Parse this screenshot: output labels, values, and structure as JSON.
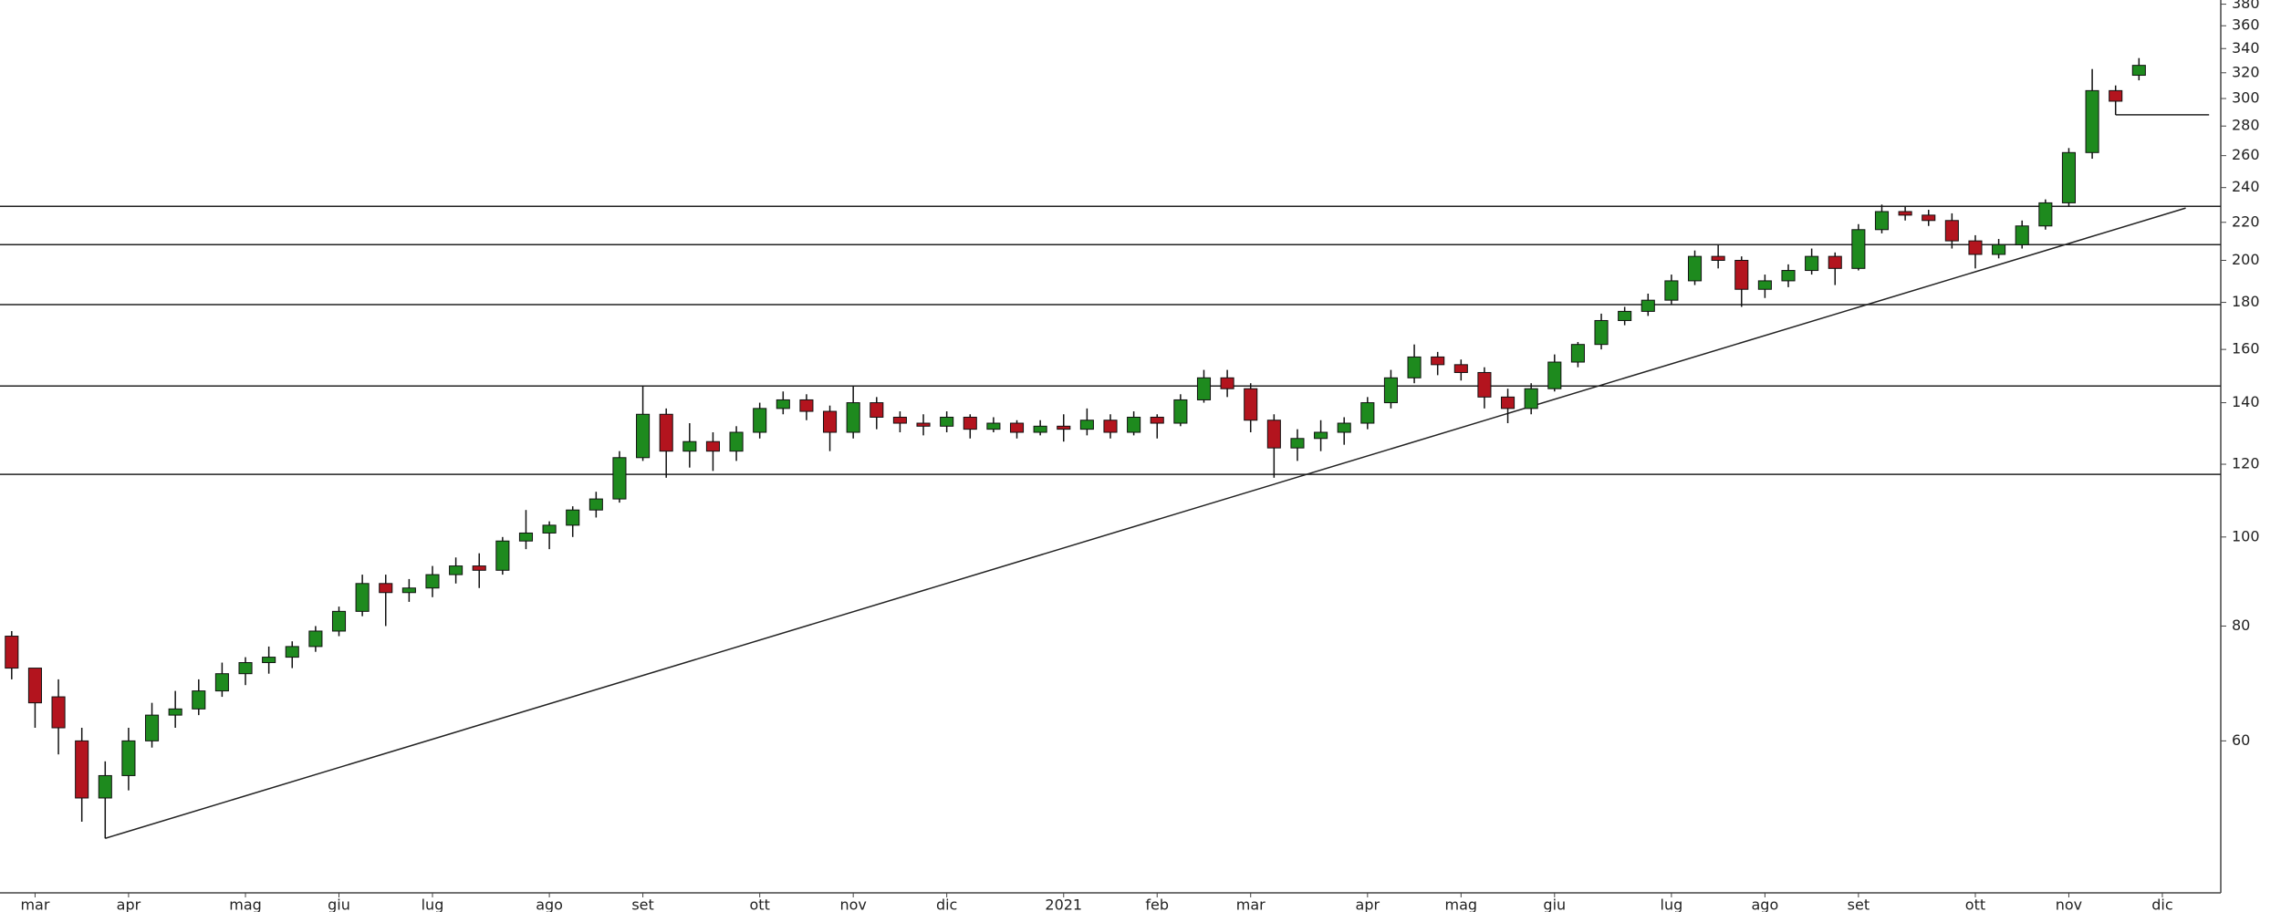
{
  "chart_data": {
    "type": "candlestick",
    "categories": [
      null,
      "mar",
      null,
      null,
      null,
      "apr",
      null,
      null,
      null,
      null,
      "mag",
      null,
      null,
      null,
      "giu",
      null,
      null,
      null,
      "lug",
      null,
      null,
      null,
      null,
      "ago",
      null,
      null,
      null,
      "set",
      null,
      null,
      null,
      null,
      "ott",
      null,
      null,
      null,
      "nov",
      null,
      null,
      null,
      "dic",
      null,
      null,
      null,
      null,
      "2021",
      null,
      null,
      null,
      "feb",
      null,
      null,
      null,
      "mar",
      null,
      null,
      null,
      null,
      "apr",
      null,
      null,
      null,
      "mag",
      null,
      null,
      null,
      "giu",
      null,
      null,
      null,
      null,
      "lug",
      null,
      null,
      null,
      "ago",
      null,
      null,
      null,
      "set",
      null,
      null,
      null,
      null,
      "ott",
      null,
      null,
      null,
      "nov",
      null,
      null,
      null,
      "dic",
      null,
      null
    ],
    "open": [
      78,
      72,
      67,
      60,
      52,
      55,
      60,
      64,
      65,
      68,
      71,
      73,
      74,
      76,
      79,
      83,
      89,
      87,
      88,
      91,
      93,
      92,
      99,
      101,
      103,
      107,
      110,
      122,
      136,
      124,
      127,
      124,
      130,
      138,
      141,
      137,
      130,
      140,
      135,
      133,
      132,
      135,
      131,
      133,
      130,
      132,
      131,
      134,
      130,
      135,
      133,
      141,
      149,
      145,
      134,
      125,
      128,
      130,
      133,
      140,
      149,
      157,
      154,
      151,
      142,
      138,
      145,
      155,
      162,
      172,
      176,
      181,
      190,
      202,
      200,
      186,
      190,
      195,
      202,
      196,
      216,
      226,
      224,
      221,
      210,
      203,
      208,
      218,
      231,
      262,
      306,
      318,
      null,
      null,
      null
    ],
    "high": [
      79,
      72,
      70,
      62,
      57,
      62,
      66,
      68,
      70,
      73,
      74,
      76,
      77,
      80,
      84,
      91,
      91,
      90,
      93,
      95,
      96,
      100,
      107,
      104,
      108,
      112,
      124,
      146,
      138,
      133,
      130,
      132,
      140,
      144,
      143,
      139,
      146,
      142,
      137,
      136,
      137,
      136,
      135,
      134,
      134,
      136,
      138,
      136,
      137,
      136,
      143,
      152,
      152,
      147,
      136,
      131,
      134,
      135,
      142,
      152,
      162,
      159,
      156,
      153,
      145,
      147,
      158,
      163,
      175,
      178,
      184,
      193,
      205,
      208,
      202,
      193,
      198,
      206,
      204,
      219,
      230,
      229,
      227,
      225,
      213,
      211,
      221,
      233,
      265,
      323,
      310,
      332,
      null,
      null,
      null
    ],
    "low": [
      70,
      62,
      58,
      49,
      47,
      53,
      59,
      62,
      64,
      67,
      69,
      71,
      72,
      75,
      78,
      82,
      80,
      85,
      86,
      89,
      88,
      91,
      97,
      97,
      100,
      105,
      109,
      121,
      116,
      119,
      118,
      121,
      128,
      136,
      134,
      124,
      128,
      131,
      130,
      129,
      130,
      128,
      130,
      128,
      129,
      127,
      129,
      128,
      129,
      128,
      132,
      140,
      142,
      130,
      116,
      121,
      124,
      126,
      131,
      138,
      147,
      150,
      148,
      138,
      133,
      136,
      144,
      153,
      160,
      170,
      174,
      179,
      188,
      196,
      178,
      182,
      187,
      193,
      188,
      195,
      214,
      221,
      218,
      206,
      196,
      201,
      206,
      216,
      229,
      258,
      288,
      314,
      null,
      null,
      null
    ],
    "close": [
      72,
      66,
      62,
      52,
      55,
      60,
      64,
      65,
      68,
      71,
      73,
      74,
      76,
      79,
      83,
      89,
      87,
      88,
      91,
      93,
      92,
      99,
      101,
      103,
      107,
      110,
      122,
      136,
      124,
      127,
      124,
      130,
      138,
      141,
      137,
      130,
      140,
      135,
      133,
      132,
      135,
      131,
      133,
      130,
      132,
      131,
      134,
      130,
      135,
      133,
      141,
      149,
      145,
      134,
      125,
      128,
      130,
      133,
      140,
      149,
      157,
      154,
      151,
      142,
      138,
      145,
      155,
      162,
      172,
      176,
      181,
      190,
      202,
      200,
      186,
      190,
      195,
      202,
      196,
      216,
      226,
      224,
      221,
      210,
      203,
      208,
      218,
      231,
      262,
      306,
      298,
      326,
      null,
      null,
      null
    ],
    "up_color": "#1e8a1e",
    "down_color": "#b3141e",
    "ylim": [
      41,
      384
    ],
    "log": true,
    "yticks": [
      60,
      80,
      100,
      120,
      140,
      160,
      180,
      200,
      220,
      240,
      260,
      280,
      300,
      320,
      340,
      360,
      380
    ],
    "hlines": [
      229,
      208,
      179,
      146,
      117
    ],
    "segments": [
      {
        "x": [
          4,
          93
        ],
        "y": [
          47,
          228
        ]
      },
      {
        "x": [
          90,
          94
        ],
        "y": [
          288,
          288
        ]
      }
    ]
  }
}
